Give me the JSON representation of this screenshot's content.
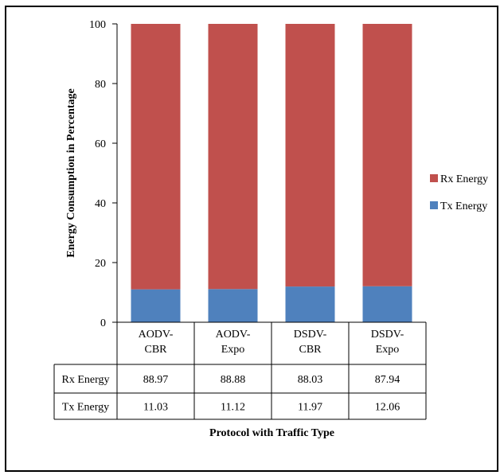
{
  "chart_data": {
    "type": "bar",
    "stacked": true,
    "categories": [
      [
        "AODV-",
        "CBR"
      ],
      [
        "AODV-",
        "Expo"
      ],
      [
        "DSDV-",
        "CBR"
      ],
      [
        "DSDV-",
        "Expo"
      ]
    ],
    "series": [
      {
        "name": "Tx Energy",
        "color": "#4f81bd",
        "values": [
          11.03,
          11.12,
          11.97,
          12.06
        ]
      },
      {
        "name": "Rx Energy",
        "color": "#c0504d",
        "values": [
          88.97,
          88.88,
          88.03,
          87.94
        ]
      }
    ],
    "table_rows": [
      {
        "label": "Rx Energy",
        "values": [
          "88.97",
          "88.88",
          "88.03",
          "87.94"
        ]
      },
      {
        "label": "Tx Energy",
        "values": [
          "11.03",
          "11.12",
          "11.97",
          "12.06"
        ]
      }
    ],
    "ylim": [
      0,
      100
    ],
    "yticks": [
      0,
      20,
      40,
      60,
      80,
      100
    ],
    "ylabel": "Energy Consumption in Percentage",
    "xlabel": "Protocol with Traffic Type",
    "legend": {
      "placement": "right",
      "items": [
        "Rx Energy",
        "Tx Energy"
      ]
    },
    "grid": false
  }
}
